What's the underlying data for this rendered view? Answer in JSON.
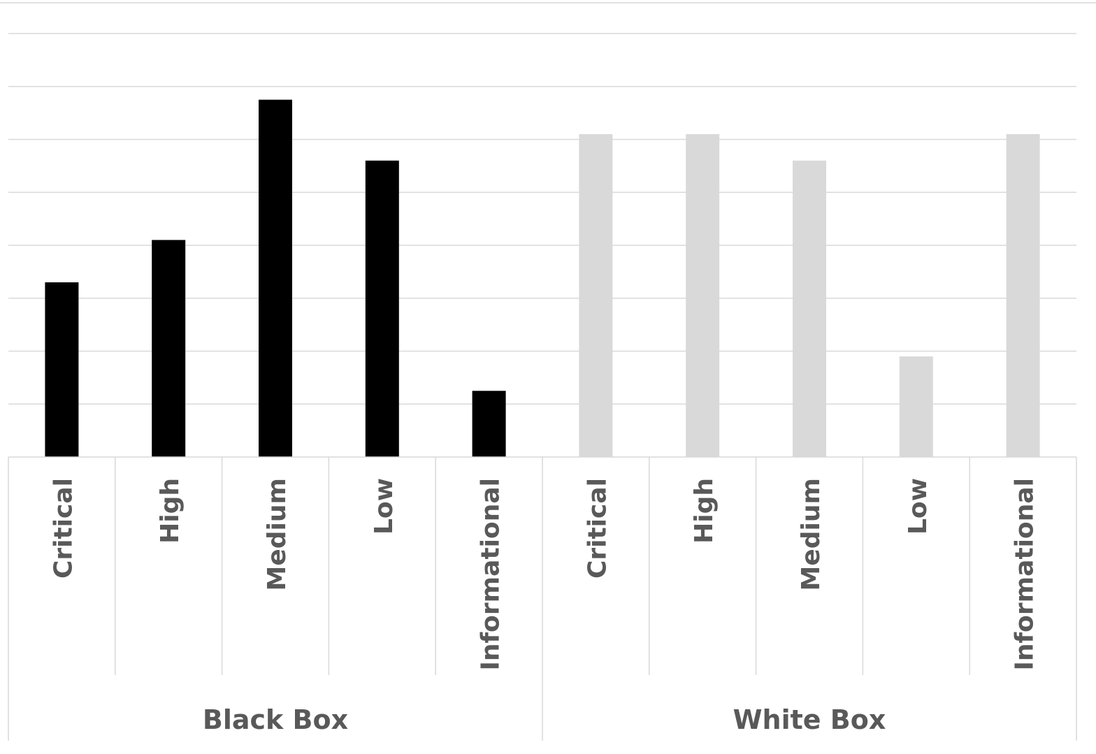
{
  "chart_data": {
    "type": "bar",
    "title": "",
    "xlabel": "",
    "ylabel": "",
    "ylim": [
      0,
      8
    ],
    "grid": true,
    "groups": [
      {
        "name": "Black Box",
        "color": "#000000",
        "categories": [
          "Critical",
          "High",
          "Medium",
          "Low",
          "Informational"
        ],
        "values": [
          3.3,
          4.1,
          6.75,
          5.6,
          1.25
        ]
      },
      {
        "name": "White Box",
        "color": "#d9d9d9",
        "categories": [
          "Critical",
          "High",
          "Medium",
          "Low",
          "Informational"
        ],
        "values": [
          6.1,
          6.1,
          5.6,
          1.9,
          6.1
        ]
      }
    ],
    "colors": {
      "gridline": "#d9d9d9",
      "label_text": "#595959"
    }
  }
}
